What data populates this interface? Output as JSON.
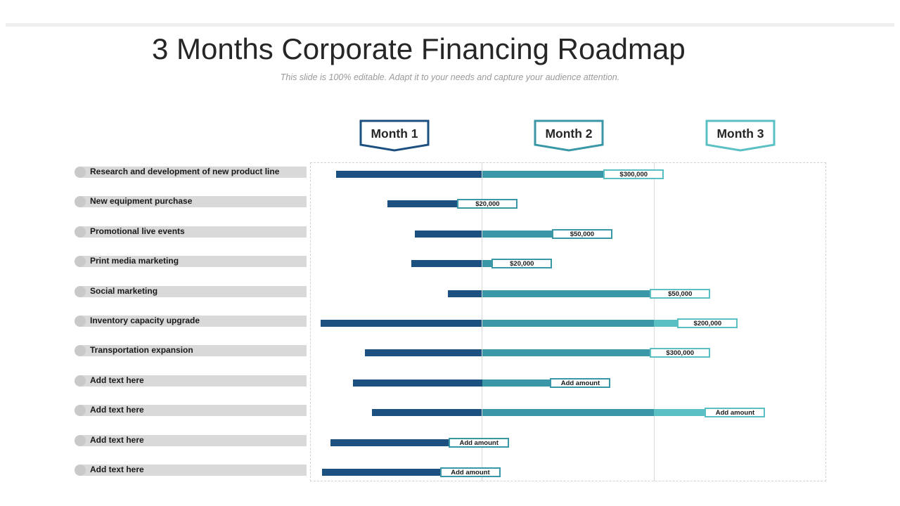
{
  "title": "3 Months Corporate Financing Roadmap",
  "subtitle": "This slide is 100% editable. Adapt it to your needs and capture your audience attention.",
  "colors": {
    "month1": "#1c5080",
    "month2": "#3a97a8",
    "month3": "#5bc0c4",
    "pill": "#d9d9d9"
  },
  "chart_data": {
    "type": "bar",
    "orientation": "horizontal-gantt",
    "columns": [
      "Month 1",
      "Month 2",
      "Month 3"
    ],
    "x_unit": "months",
    "xlim": [
      0,
      3
    ],
    "tasks": [
      {
        "label": "Research and development of new product line",
        "start": 0.15,
        "end": 2.05,
        "amount": "$300,000"
      },
      {
        "label": "New equipment purchase",
        "start": 0.45,
        "end": 1.2,
        "amount": "$20,000"
      },
      {
        "label": "Promotional live events",
        "start": 0.61,
        "end": 1.75,
        "amount": "$50,000"
      },
      {
        "label": "Print media marketing",
        "start": 0.59,
        "end": 1.4,
        "amount": "$20,000"
      },
      {
        "label": "Social marketing",
        "start": 0.8,
        "end": 2.32,
        "amount": "$50,000"
      },
      {
        "label": "Inventory capacity upgrade",
        "start": 0.06,
        "end": 2.48,
        "amount": "$200,000"
      },
      {
        "label": "Transportation expansion",
        "start": 0.32,
        "end": 2.32,
        "amount": "$300,000"
      },
      {
        "label": "Add text here",
        "start": 0.25,
        "end": 1.74,
        "amount": "Add amount"
      },
      {
        "label": "Add text here",
        "start": 0.36,
        "end": 2.64,
        "amount": "Add amount"
      },
      {
        "label": "Add text here",
        "start": 0.12,
        "end": 1.15,
        "amount": "Add amount"
      },
      {
        "label": "Add text here",
        "start": 0.07,
        "end": 1.1,
        "amount": "Add amount"
      }
    ]
  }
}
